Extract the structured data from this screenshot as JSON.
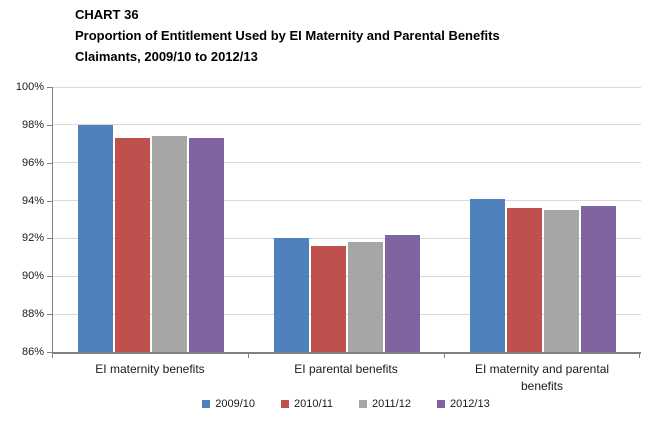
{
  "title": {
    "chart_number": "CHART 36",
    "line1": "Proportion of Entitlement Used by EI Maternity and Parental Benefits",
    "line2": "Claimants, 2009/10 to 2012/13"
  },
  "chart_data": {
    "type": "bar",
    "title": "CHART 36 — Proportion of Entitlement Used by EI Maternity and Parental Benefits Claimants, 2009/10 to 2012/13",
    "categories": [
      "EI maternity benefits",
      "EI parental benefits",
      "EI maternity and parental benefits"
    ],
    "series": [
      {
        "name": "2009/10",
        "color": "#4F81BD",
        "values": [
          98.0,
          92.0,
          94.1
        ]
      },
      {
        "name": "2010/11",
        "color": "#C0504D",
        "values": [
          97.3,
          91.6,
          93.6
        ]
      },
      {
        "name": "2011/12",
        "color": "#A6A6A6",
        "values": [
          97.4,
          91.8,
          93.5
        ]
      },
      {
        "name": "2012/13",
        "color": "#8064A2",
        "values": [
          97.3,
          92.2,
          93.7
        ]
      }
    ],
    "xlabel": "",
    "ylabel": "",
    "ylim": [
      86,
      100
    ],
    "ytick_step": 2,
    "ytick_labels": [
      "86%",
      "88%",
      "90%",
      "92%",
      "94%",
      "96%",
      "98%",
      "100%"
    ],
    "grid": true,
    "legend_position": "bottom",
    "colors": {
      "gridline": "#D9D9D9",
      "axis": "#808080",
      "text": "#1A1A1A"
    }
  }
}
